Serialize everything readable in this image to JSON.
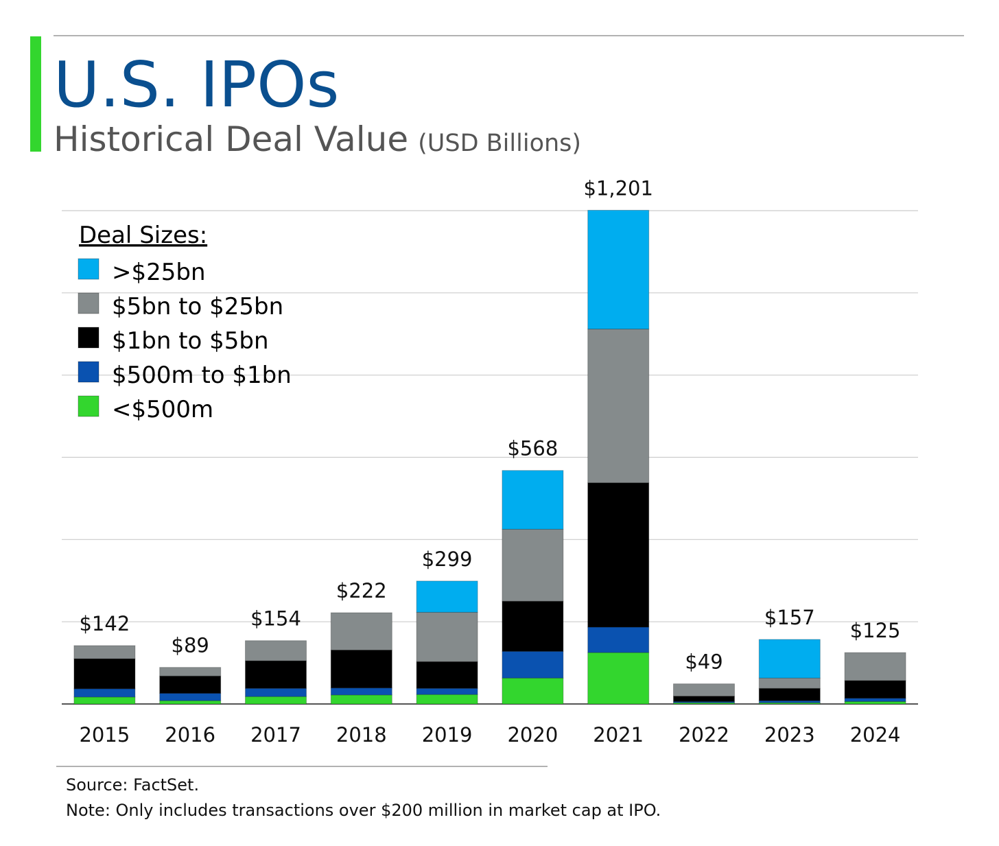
{
  "chart_data": {
    "type": "stacked_bar",
    "title": "U.S. IPOs",
    "subtitle": "Historical Deal Value",
    "unit_note": "(USD Billions)",
    "legend_title": "Deal Sizes:",
    "categories": [
      "2015",
      "2016",
      "2017",
      "2018",
      "2019",
      "2020",
      "2021",
      "2022",
      "2023",
      "2024"
    ],
    "series": [
      {
        "name": "<$500m",
        "color": "#33d62e",
        "values": [
          17,
          8,
          18,
          22,
          23,
          63,
          125,
          3,
          3,
          6
        ]
      },
      {
        "name": "$500m to $1bn",
        "color": "#0a52b0",
        "values": [
          20,
          18,
          20,
          17,
          15,
          65,
          62,
          3,
          5,
          8
        ]
      },
      {
        "name": "$1bn to $5bn",
        "color": "#000000",
        "values": [
          73,
          42,
          67,
          92,
          65,
          122,
          351,
          13,
          30,
          43
        ]
      },
      {
        "name": "$5bn to $25bn",
        "color": "#858b8c",
        "values": [
          32,
          21,
          49,
          91,
          120,
          175,
          374,
          30,
          25,
          68
        ]
      },
      {
        "name": ">$25bn",
        "color": "#00adef",
        "values": [
          0,
          0,
          0,
          0,
          76,
          143,
          289,
          0,
          94,
          0
        ]
      }
    ],
    "totals": [
      142,
      89,
      154,
      222,
      299,
      568,
      1201,
      49,
      157,
      125
    ],
    "total_labels": [
      "$142",
      "$89",
      "$154",
      "$222",
      "$299",
      "$568",
      "$1,201",
      "$49",
      "$157",
      "$125"
    ],
    "ylim": [
      0,
      1200
    ],
    "yticks": [
      0,
      200,
      400,
      600,
      800,
      1000,
      1200
    ],
    "grid": true,
    "legend": "upper left",
    "source": "Source: FactSet.",
    "note": "Note: Only includes transactions over $200 million in market cap at IPO."
  }
}
